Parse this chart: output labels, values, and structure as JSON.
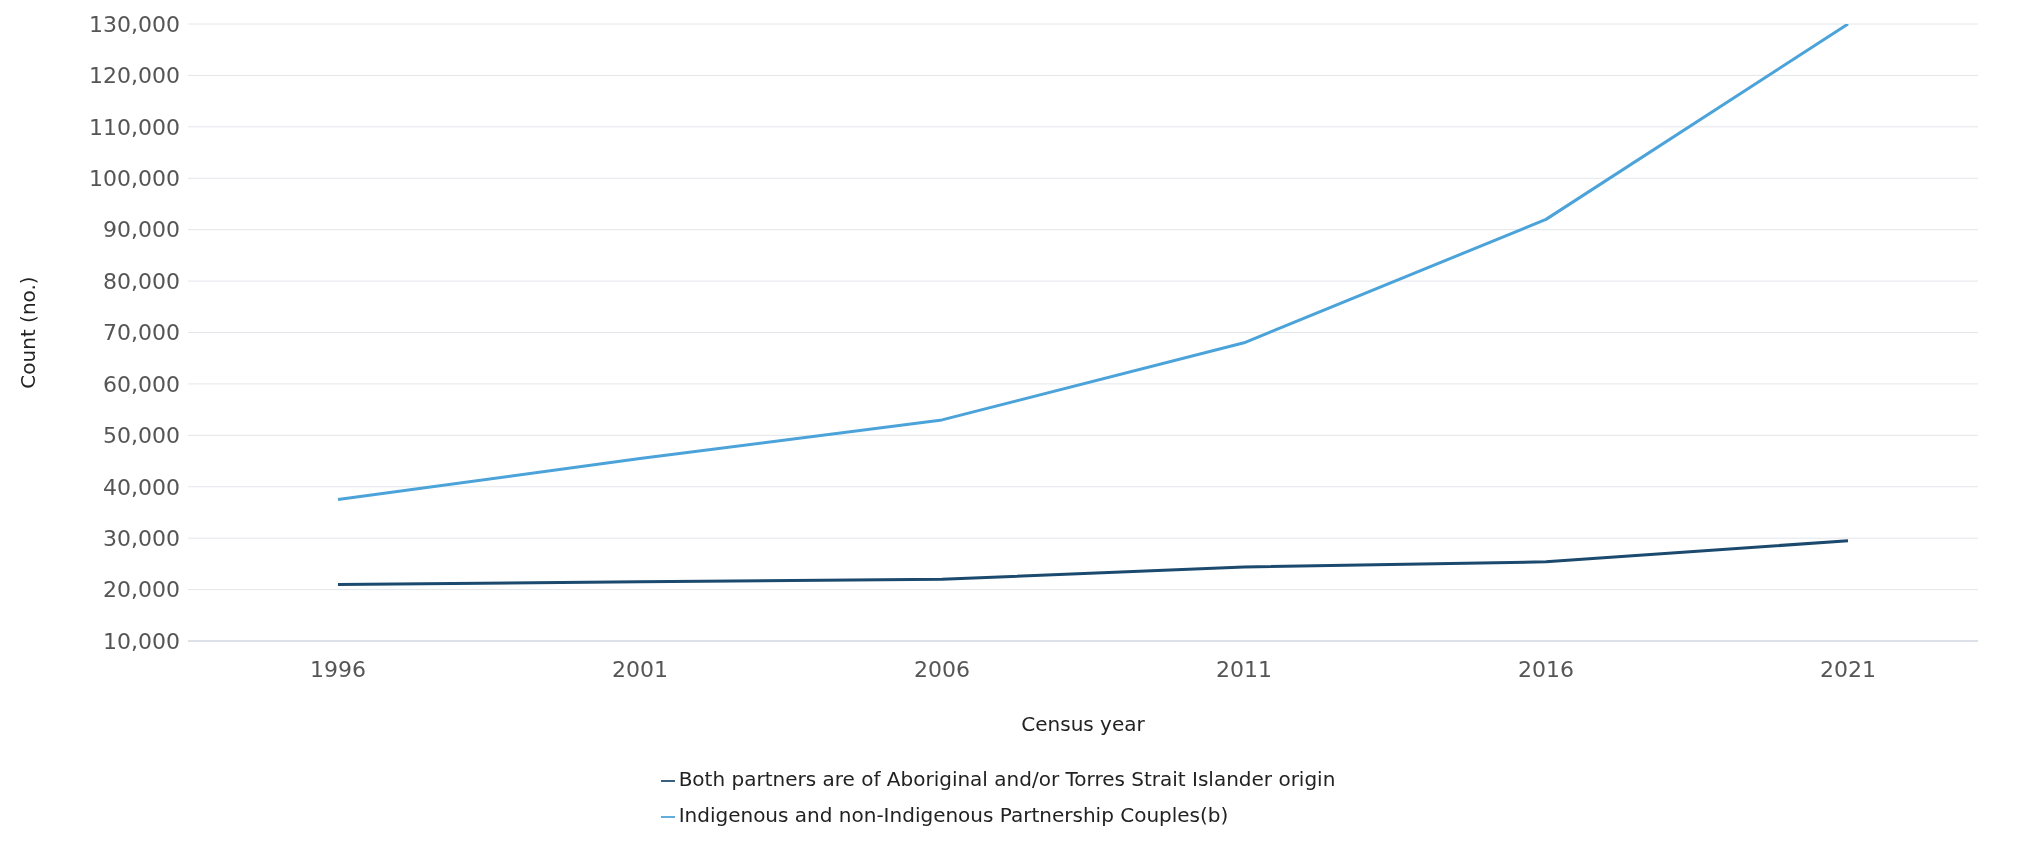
{
  "chart_data": {
    "type": "line",
    "xlabel": "Census year",
    "ylabel": "Count (no.)",
    "categories": [
      "1996",
      "2001",
      "2006",
      "2011",
      "2016",
      "2021"
    ],
    "series": [
      {
        "name": "Indigenous and non-Indigenous Partnership Couples(b)",
        "color": "#4ba3d9",
        "values": [
          37500,
          45500,
          53000,
          68000,
          92000,
          130000
        ]
      },
      {
        "name": "Both partners are of Aboriginal and/or Torres Strait Islander origin",
        "color": "#1b4a6e",
        "values": [
          21000,
          21500,
          22000,
          24400,
          25400,
          29500
        ]
      }
    ],
    "ylim": [
      10000,
      130000
    ],
    "yticks": [
      {
        "value": 10000,
        "label": "10,000"
      },
      {
        "value": 20000,
        "label": "20,000"
      },
      {
        "value": 30000,
        "label": "30,000"
      },
      {
        "value": 40000,
        "label": "40,000"
      },
      {
        "value": 50000,
        "label": "50,000"
      },
      {
        "value": 60000,
        "label": "60,000"
      },
      {
        "value": 70000,
        "label": "70,000"
      },
      {
        "value": 80000,
        "label": "80,000"
      },
      {
        "value": 90000,
        "label": "90,000"
      },
      {
        "value": 100000,
        "label": "100,000"
      },
      {
        "value": 110000,
        "label": "110,000"
      },
      {
        "value": 120000,
        "label": "120,000"
      },
      {
        "value": 130000,
        "label": "130,000"
      }
    ],
    "grid": "y",
    "legend": "bottom",
    "marker": "none",
    "line_style": "solid"
  }
}
